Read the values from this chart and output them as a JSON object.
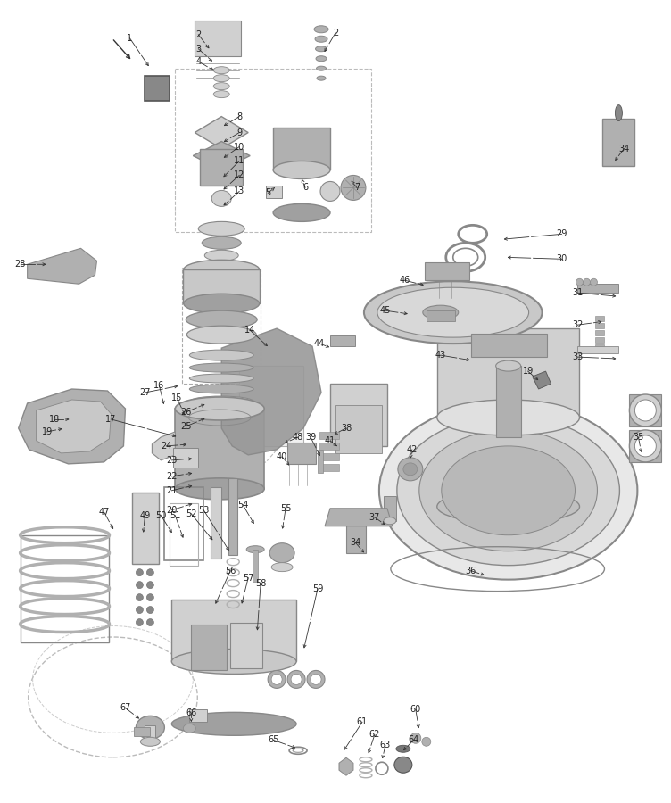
{
  "background_color": "#ffffff",
  "fig_width": 7.52,
  "fig_height": 9.0,
  "dpi": 100,
  "line_color": "#333333",
  "font_size": 7.0,
  "gray_light": "#d0d0d0",
  "gray_mid": "#b0b0b0",
  "gray_dark": "#888888",
  "gray_body": "#c8c8c8",
  "gray_deep": "#a0a0a0"
}
